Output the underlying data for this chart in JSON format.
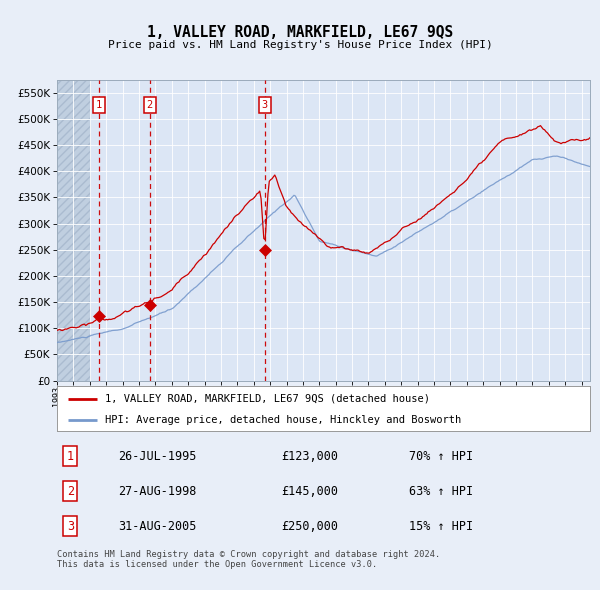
{
  "title": "1, VALLEY ROAD, MARKFIELD, LE67 9QS",
  "subtitle": "Price paid vs. HM Land Registry's House Price Index (HPI)",
  "red_label": "1, VALLEY ROAD, MARKFIELD, LE67 9QS (detached house)",
  "blue_label": "HPI: Average price, detached house, Hinckley and Bosworth",
  "transactions": [
    {
      "num": 1,
      "date": "26-JUL-1995",
      "price": 123000,
      "hpi_change": "70%",
      "direction": "↑"
    },
    {
      "num": 2,
      "date": "27-AUG-1998",
      "price": 145000,
      "hpi_change": "63%",
      "direction": "↑"
    },
    {
      "num": 3,
      "date": "31-AUG-2005",
      "price": 250000,
      "hpi_change": "15%",
      "direction": "↑"
    }
  ],
  "transaction_dates_decimal": [
    1995.57,
    1998.66,
    2005.66
  ],
  "transaction_prices": [
    123000,
    145000,
    250000
  ],
  "ylim": [
    0,
    575000
  ],
  "yticks": [
    0,
    50000,
    100000,
    150000,
    200000,
    250000,
    300000,
    350000,
    400000,
    450000,
    500000,
    550000
  ],
  "xlim_start": 1993.0,
  "xlim_end": 2025.5,
  "footer": "Contains HM Land Registry data © Crown copyright and database right 2024.\nThis data is licensed under the Open Government Licence v3.0.",
  "bg_color": "#e8eef8",
  "plot_bg_color": "#dce6f5",
  "hatch_color": "#c0cfe0",
  "grid_color": "#ffffff",
  "red_color": "#cc0000",
  "blue_color": "#7799cc",
  "vline_color": "#cc0000",
  "box_color": "#cc0000"
}
